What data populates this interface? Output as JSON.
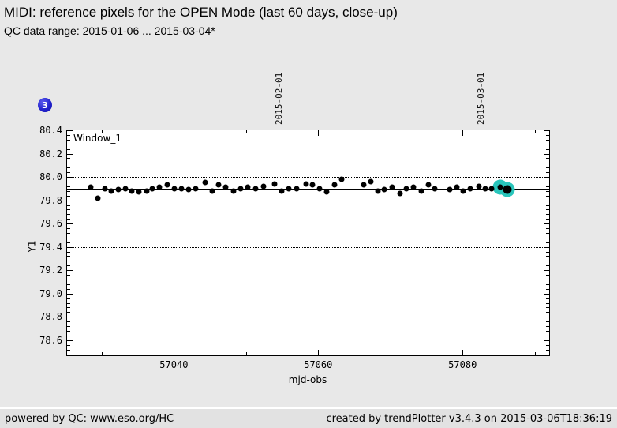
{
  "page": {
    "title": "MIDI: reference pixels for the OPEN Mode (last 60 days, close-up)",
    "subtitle": "QC data range: 2015-01-06 ... 2015-03-04*",
    "background": "#e8e8e8"
  },
  "badge": {
    "label": "3",
    "color": "#2222cc"
  },
  "footer": {
    "left": "powered by QC: www.eso.org/HC",
    "right": "created by trendPlotter v3.4.3 on 2015-03-06T18:36:19"
  },
  "chart_data": {
    "type": "scatter",
    "window_label": "Window_1",
    "xlabel": "mjd-obs",
    "ylabel": "Y1",
    "xlim": [
      57025.2,
      57092.0
    ],
    "ylim": [
      78.47,
      80.4
    ],
    "x_major_ticks": [
      57040,
      57060,
      57080
    ],
    "x_minor_ticks": [
      57030,
      57050,
      57070,
      57090
    ],
    "y_major_ticks": [
      80.4,
      80.2,
      80.0,
      79.8,
      79.6,
      79.4,
      79.2,
      79.0,
      78.8,
      78.6
    ],
    "y_minor_step": 0.04,
    "grid": "dotted-reference-lines-only",
    "h_gridlines": [
      80.0,
      79.4
    ],
    "v_gridlines": [
      {
        "mjd": 57054.5,
        "label": "2015-02-01"
      },
      {
        "mjd": 57082.5,
        "label": "2015-03-01"
      }
    ],
    "mean_line": 79.9,
    "point_color": "#000000",
    "highlight_color": "#29c5bb",
    "series": [
      {
        "name": "Y1",
        "points": [
          [
            57028.5,
            79.91
          ],
          [
            57029.5,
            79.82
          ],
          [
            57030.5,
            79.9
          ],
          [
            57031.3,
            79.88
          ],
          [
            57032.3,
            79.89
          ],
          [
            57033.3,
            79.9
          ],
          [
            57034.2,
            79.88
          ],
          [
            57035.2,
            79.87
          ],
          [
            57036.2,
            79.88
          ],
          [
            57037.0,
            79.9
          ],
          [
            57038.0,
            79.91
          ],
          [
            57039.1,
            79.93
          ],
          [
            57040.1,
            79.9
          ],
          [
            57041.1,
            79.9
          ],
          [
            57042.0,
            79.89
          ],
          [
            57043.0,
            79.9
          ],
          [
            57044.3,
            79.95
          ],
          [
            57045.3,
            79.88
          ],
          [
            57046.2,
            79.93
          ],
          [
            57047.2,
            79.91
          ],
          [
            57048.3,
            79.88
          ],
          [
            57049.2,
            79.9
          ],
          [
            57050.2,
            79.91
          ],
          [
            57051.3,
            79.9
          ],
          [
            57052.4,
            79.92
          ],
          [
            57054.0,
            79.94
          ],
          [
            57054.9,
            79.88
          ],
          [
            57055.9,
            79.9
          ],
          [
            57057.0,
            79.9
          ],
          [
            57058.3,
            79.94
          ],
          [
            57059.2,
            79.93
          ],
          [
            57060.2,
            79.9
          ],
          [
            57061.2,
            79.87
          ],
          [
            57062.3,
            79.93
          ],
          [
            57063.3,
            79.98
          ],
          [
            57066.3,
            79.93
          ],
          [
            57067.3,
            79.96
          ],
          [
            57068.3,
            79.88
          ],
          [
            57069.2,
            79.89
          ],
          [
            57070.2,
            79.91
          ],
          [
            57071.3,
            79.86
          ],
          [
            57072.2,
            79.9
          ],
          [
            57073.2,
            79.91
          ],
          [
            57074.3,
            79.88
          ],
          [
            57075.3,
            79.93
          ],
          [
            57076.2,
            79.9
          ],
          [
            57078.2,
            79.89
          ],
          [
            57079.2,
            79.91
          ],
          [
            57080.1,
            79.88
          ],
          [
            57081.1,
            79.9
          ],
          [
            57082.3,
            79.92
          ],
          [
            57083.1,
            79.9
          ],
          [
            57084.0,
            79.9
          ]
        ]
      }
    ],
    "highlighted_points": [
      {
        "x": 57085.2,
        "y": 79.91,
        "dot": 7
      },
      {
        "x": 57086.2,
        "y": 79.89,
        "dot": 11
      }
    ]
  }
}
